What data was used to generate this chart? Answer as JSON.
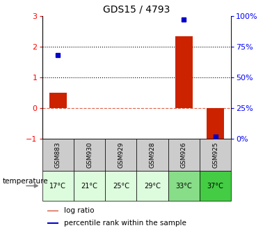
{
  "title": "GDS15 / 4793",
  "samples": [
    "GSM883",
    "GSM930",
    "GSM929",
    "GSM928",
    "GSM926",
    "GSM925"
  ],
  "temperatures": [
    "17°C",
    "21°C",
    "25°C",
    "29°C",
    "33°C",
    "37°C"
  ],
  "log_ratio": [
    0.5,
    0.0,
    0.0,
    0.0,
    2.35,
    -1.0
  ],
  "percentile_rank": [
    68.0,
    null,
    null,
    null,
    97.0,
    2.0
  ],
  "ylim_left": [
    -1,
    3
  ],
  "ylim_right": [
    0,
    100
  ],
  "yticks_left": [
    -1,
    0,
    1,
    2,
    3
  ],
  "ytick_labels_right": [
    "0%",
    "25%",
    "50%",
    "75%",
    "100%"
  ],
  "yticks_right": [
    0,
    25,
    50,
    75,
    100
  ],
  "bar_color": "#cc2200",
  "point_color": "#0000cc",
  "temp_bg_colors": [
    "#ddfcdd",
    "#ddfcdd",
    "#ddfcdd",
    "#ddfcdd",
    "#88dd88",
    "#44cc44"
  ],
  "sample_bg_color": "#cccccc",
  "legend_log_ratio": "log ratio",
  "legend_percentile": "percentile rank within the sample",
  "temperature_label": "temperature"
}
